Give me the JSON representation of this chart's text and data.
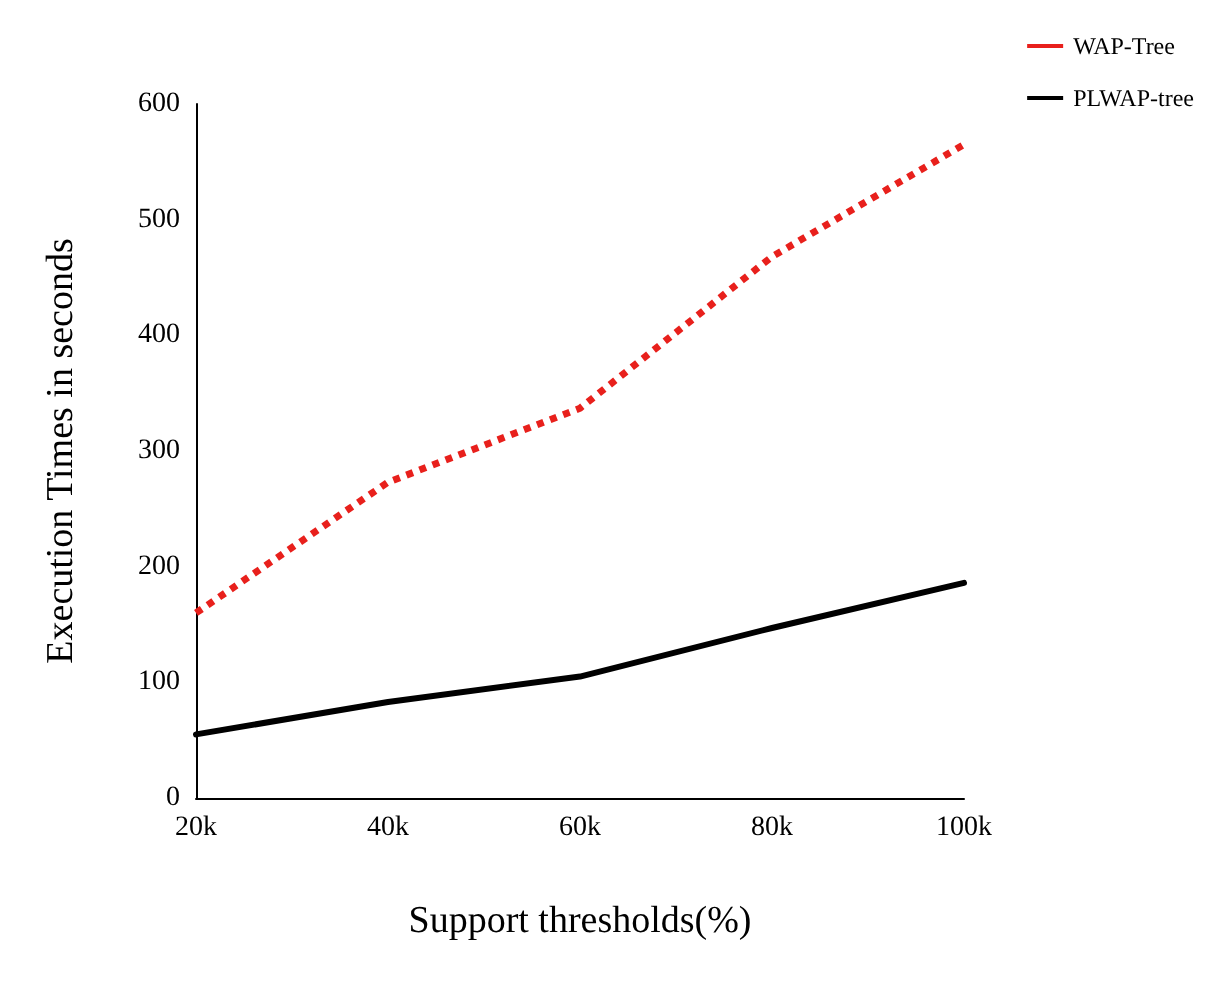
{
  "chart_data": {
    "type": "line",
    "xlabel": "Support thresholds(%)",
    "ylabel": "Execution Times in seconds",
    "categories": [
      "20k",
      "40k",
      "60k",
      "80k",
      "100k"
    ],
    "series": [
      {
        "name": "WAP-Tree",
        "color": "#e8201c",
        "line_style": "dotted",
        "values": [
          160,
          273,
          337,
          468,
          565
        ]
      },
      {
        "name": "PLWAP-tree",
        "color": "#000000",
        "line_style": "solid",
        "values": [
          55,
          83,
          105,
          147,
          186
        ]
      }
    ],
    "ylim": [
      0,
      600
    ],
    "yticks": [
      0,
      100,
      200,
      300,
      400,
      500,
      600
    ],
    "grid": false,
    "legend": "top right",
    "marker": "none"
  }
}
